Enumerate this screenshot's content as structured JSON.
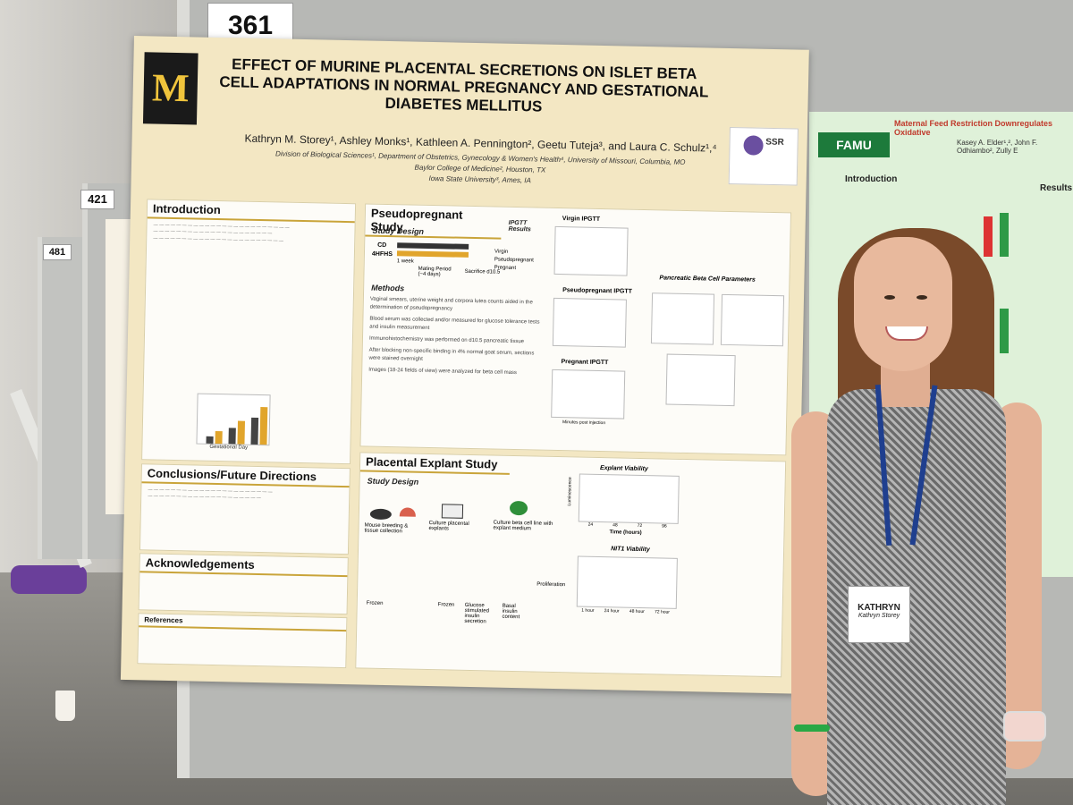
{
  "booth_number": "361",
  "neighbor_numbers": [
    "421",
    "481"
  ],
  "poster": {
    "logo_text": "M",
    "title": "EFFECT OF MURINE PLACENTAL SECRETIONS ON ISLET BETA CELL ADAPTATIONS IN NORMAL PREGNANCY AND GESTATIONAL DIABETES MELLITUS",
    "authors": "Kathryn M. Storey¹, Ashley Monks¹, Kathleen A. Pennington², Geetu Tuteja³, and Laura C. Schulz¹,⁴",
    "affiliation_1": "Division of Biological Sciences¹, Department of Obstetrics, Gynecology & Women's Health⁴, University of Missouri, Columbia, MO",
    "affiliation_2": "Baylor College of Medicine², Houston, TX",
    "affiliation_3": "Iowa State University³, Ames, IA",
    "ssr_label": "SSR",
    "introduction_header": "Introduction",
    "conclusions_header": "Conclusions/Future Directions",
    "acknowledgements_header": "Acknowledgements",
    "references_header": "References",
    "pseudopregnant_header": "Pseudopregnant Study",
    "study_design_label": "Study Design",
    "ipgtt_results_label": "IPGTT Results",
    "virgin_ipgtt": "Virgin IPGTT",
    "pseudopregnant_ipgtt": "Pseudopregnant IPGTT",
    "pregnant_ipgtt": "Pregnant IPGTT",
    "minutes_post_injection": "Minutes post injection",
    "beta_cell_params": "Pancreatic Beta Cell Parameters",
    "methods_label": "Methods",
    "cd_label": "CD",
    "hfhs_label": "4HFHS",
    "mating_period": "Mating Period (~4 days)",
    "one_week": "1 week",
    "sacrifice": "Sacrifice d10.5",
    "outcomes": [
      "Virgin",
      "Pseudopregnant",
      "Pregnant"
    ],
    "methods_bullets": [
      "Vaginal smears, uterine weight and corpora lutea counts aided in the determination of pseudopregnancy",
      "Blood serum was collected and/or measured for glucose tolerance tests and insulin measurement",
      "Immunohistochemistry was performed on d10.5 pancreatic tissue",
      "After blocking non-specific binding in 4% normal goat serum, sections were stained overnight",
      "Images (18-24 fields of view) were analyzed for beta cell mass"
    ],
    "explant_header": "Placental Explant Study",
    "explant_steps": [
      "Mouse breeding & tissue collection",
      "Culture placental explants",
      "Culture beta cell line with explant medium"
    ],
    "explant_outputs": [
      "Frozen",
      "Frozen",
      "Glucose stimulated insulin secretion",
      "Basal insulin content",
      "Proliferation"
    ],
    "explant_viability": "Explant Viability",
    "nit1_viability": "NIT1 Viability",
    "luminescence": "Luminescence",
    "time_hours": "Time (hours)",
    "time_ticks": [
      "24",
      "48",
      "72",
      "96"
    ],
    "nit1_ticks": [
      "1 hour",
      "24 hour",
      "48 hour",
      "72 hour"
    ],
    "gestational_day": "Gestational Day"
  },
  "poster2": {
    "logo": "FAMU",
    "title": "Maternal Feed Restriction Downregulates Oxidative",
    "authors": "Kasey A. Elder¹,², John F. Odhiambo², Zully E",
    "introduction_header": "Introduction",
    "results_header": "Results"
  },
  "badge": {
    "name": "KATHRYN",
    "full_name": "Kathryn Storey"
  },
  "colors": {
    "poster_bg": "#f3e7c3",
    "accent_gold": "#c9a43a",
    "famu_green": "#1d7a3b",
    "lanyard_blue": "#1f3f8f"
  }
}
